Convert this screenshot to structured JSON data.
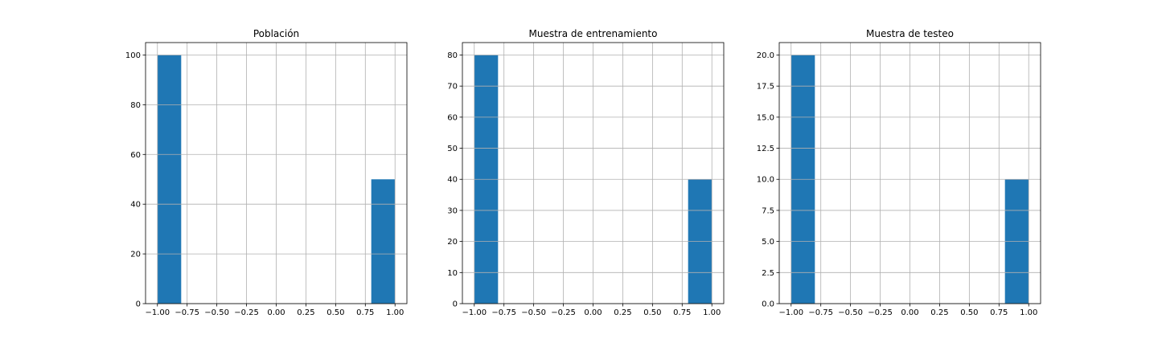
{
  "colors": {
    "bar": "#1f77b4",
    "grid": "#b0b0b0",
    "axis": "#000000",
    "background": "#ffffff"
  },
  "chart_data": [
    {
      "type": "bar",
      "title": "Población",
      "xlabel": "",
      "ylabel": "",
      "xlim": [
        -1.1,
        1.1
      ],
      "ylim": [
        0,
        105
      ],
      "grid": true,
      "x_ticks": [
        -1.0,
        -0.75,
        -0.5,
        -0.25,
        0.0,
        0.25,
        0.5,
        0.75,
        1.0
      ],
      "x_tick_labels": [
        "−1.00",
        "−0.75",
        "−0.50",
        "−0.25",
        "0.00",
        "0.25",
        "0.50",
        "0.75",
        "1.00"
      ],
      "y_ticks": [
        0,
        20,
        40,
        60,
        80,
        100
      ],
      "y_tick_labels": [
        "0",
        "20",
        "40",
        "60",
        "80",
        "100"
      ],
      "bins": [
        {
          "x0": -1.0,
          "x1": -0.8,
          "value": 100
        },
        {
          "x0": 0.8,
          "x1": 1.0,
          "value": 50
        }
      ]
    },
    {
      "type": "bar",
      "title": "Muestra de entrenamiento",
      "xlabel": "",
      "ylabel": "",
      "xlim": [
        -1.1,
        1.1
      ],
      "ylim": [
        0,
        84
      ],
      "grid": true,
      "x_ticks": [
        -1.0,
        -0.75,
        -0.5,
        -0.25,
        0.0,
        0.25,
        0.5,
        0.75,
        1.0
      ],
      "x_tick_labels": [
        "−1.00",
        "−0.75",
        "−0.50",
        "−0.25",
        "0.00",
        "0.25",
        "0.50",
        "0.75",
        "1.00"
      ],
      "y_ticks": [
        0,
        10,
        20,
        30,
        40,
        50,
        60,
        70,
        80
      ],
      "y_tick_labels": [
        "0",
        "10",
        "20",
        "30",
        "40",
        "50",
        "60",
        "70",
        "80"
      ],
      "bins": [
        {
          "x0": -1.0,
          "x1": -0.8,
          "value": 80
        },
        {
          "x0": 0.8,
          "x1": 1.0,
          "value": 40
        }
      ]
    },
    {
      "type": "bar",
      "title": "Muestra de testeo",
      "xlabel": "",
      "ylabel": "",
      "xlim": [
        -1.1,
        1.1
      ],
      "ylim": [
        0,
        21
      ],
      "grid": true,
      "x_ticks": [
        -1.0,
        -0.75,
        -0.5,
        -0.25,
        0.0,
        0.25,
        0.5,
        0.75,
        1.0
      ],
      "x_tick_labels": [
        "−1.00",
        "−0.75",
        "−0.50",
        "−0.25",
        "0.00",
        "0.25",
        "0.50",
        "0.75",
        "1.00"
      ],
      "y_ticks": [
        0,
        2.5,
        5,
        7.5,
        10,
        12.5,
        15,
        17.5,
        20
      ],
      "y_tick_labels": [
        "0.0",
        "2.5",
        "5.0",
        "7.5",
        "10.0",
        "12.5",
        "15.0",
        "17.5",
        "20.0"
      ],
      "bins": [
        {
          "x0": -1.0,
          "x1": -0.8,
          "value": 20
        },
        {
          "x0": 0.8,
          "x1": 1.0,
          "value": 10
        }
      ]
    }
  ]
}
